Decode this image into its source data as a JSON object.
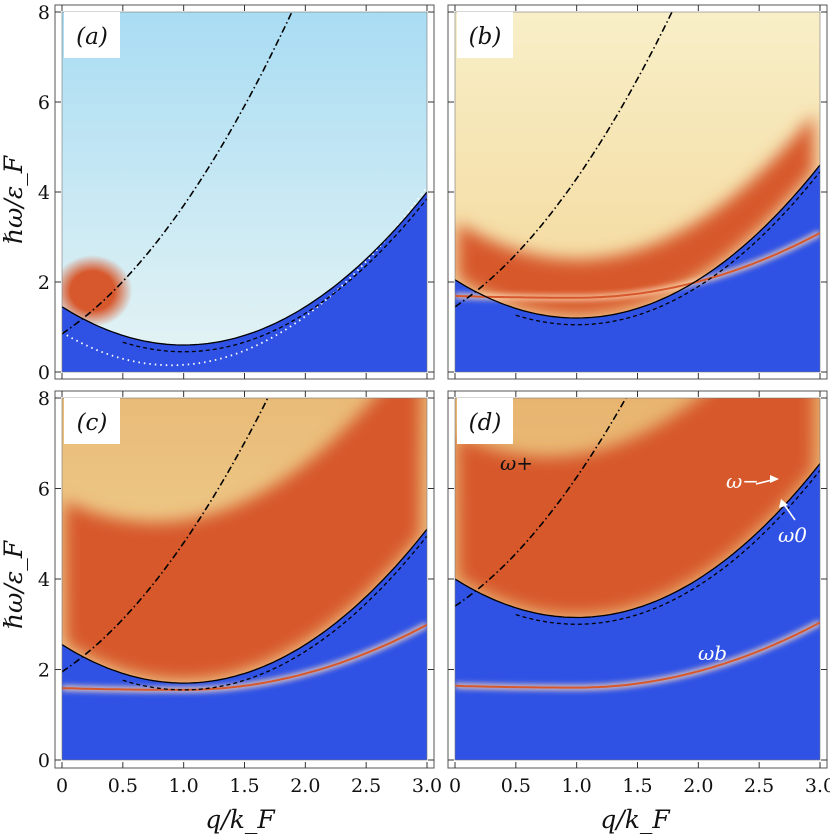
{
  "figure": {
    "xlabel": "q/k_F",
    "ylabel": "ℏω/ε_F",
    "xlim": [
      0,
      3
    ],
    "ylim": [
      0,
      8
    ],
    "xticks": [
      "0",
      "0.5",
      "1.0",
      "1.5",
      "2.0",
      "2.5",
      "3.0"
    ],
    "yticks": [
      "0",
      "2",
      "4",
      "6",
      "8"
    ]
  },
  "colors": {
    "blue": "#2f52e5",
    "orange": "#d7582c",
    "cream": "#f7efc4",
    "tan": "#e8b770",
    "sky": "#aee0f4",
    "line": "#000000"
  },
  "chart_data": [
    {
      "type": "heatmap",
      "panel": "(a)",
      "gap": 0.6,
      "bg": "#d9eef5",
      "top_color": "#a9dcf3",
      "hot_spot": {
        "x": 0.25,
        "y": 1.8,
        "label": "orange spot"
      },
      "curves": [
        {
          "name": "upper edge (solid)",
          "style": "solid"
        },
        {
          "name": "omega_+ (dash-dot)",
          "style": "dashdot"
        },
        {
          "name": "lower edge (dotted)",
          "style": "dotted"
        }
      ]
    },
    {
      "type": "heatmap",
      "panel": "(b)",
      "gap": 1.2,
      "bg": "#f6dfa4",
      "top_color": "#f8efc8",
      "bound_state_min": 1.65,
      "curves": [
        {
          "name": "upper edge (solid)",
          "style": "solid"
        },
        {
          "name": "omega_+ (dash-dot)",
          "style": "dashdot"
        },
        {
          "name": "omega_b",
          "style": "orange"
        }
      ]
    },
    {
      "type": "heatmap",
      "panel": "(c)",
      "gap": 1.7,
      "bg": "#f2cf8c",
      "top_color": "#e9bb78",
      "bound_state_min": 1.55,
      "curves": [
        {
          "name": "upper edge (solid)",
          "style": "solid"
        },
        {
          "name": "omega_+ (dash-dot)",
          "style": "dashdot"
        },
        {
          "name": "omega_b",
          "style": "orange"
        }
      ]
    },
    {
      "type": "heatmap",
      "panel": "(d)",
      "gap": 3.15,
      "bg": "#eab977",
      "top_color": "#e8b570",
      "bound_state_min": 1.6,
      "curves": [
        {
          "name": "upper edge (solid)",
          "style": "solid"
        },
        {
          "name": "omega_+ (dash-dot)",
          "style": "dashdot"
        },
        {
          "name": "omega_b",
          "style": "orange"
        }
      ],
      "annotations": {
        "omega_plus": "ω+",
        "omega_minus": "ω−",
        "omega_zero": "ω0",
        "omega_b": "ωb"
      }
    }
  ]
}
